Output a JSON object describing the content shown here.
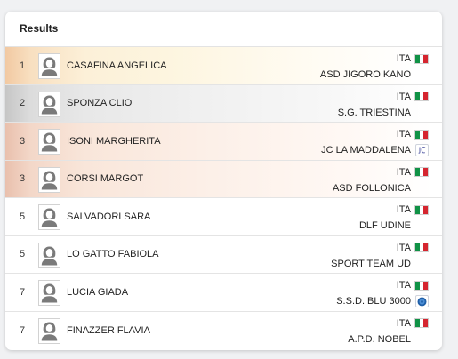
{
  "results": {
    "title": "Results",
    "rows": [
      {
        "rank": "1",
        "name": "CASAFINA ANGELICA",
        "nation": "ITA",
        "club": "ASD JIGORO KANO",
        "medal": "gold"
      },
      {
        "rank": "2",
        "name": "SPONZA CLIO",
        "nation": "ITA",
        "club": "S.G. TRIESTINA",
        "medal": "silver"
      },
      {
        "rank": "3",
        "name": "ISONI MARGHERITA",
        "nation": "ITA",
        "club": "JC LA MADDALENA",
        "medal": "bronze",
        "club_logo": "jc-la-maddalena-logo-icon"
      },
      {
        "rank": "3",
        "name": "CORSI MARGOT",
        "nation": "ITA",
        "club": "ASD FOLLONICA",
        "medal": "bronze"
      },
      {
        "rank": "5",
        "name": "SALVADORI SARA",
        "nation": "ITA",
        "club": "DLF UDINE",
        "medal": "none"
      },
      {
        "rank": "5",
        "name": "LO GATTO FABIOLA",
        "nation": "ITA",
        "club": "SPORT TEAM UD",
        "medal": "none"
      },
      {
        "rank": "7",
        "name": "LUCIA GIADA",
        "nation": "ITA",
        "club": "S.S.D. BLU 3000",
        "medal": "none",
        "club_logo": "blu-3000-logo-icon"
      },
      {
        "rank": "7",
        "name": "FINAZZER FLAVIA",
        "nation": "ITA",
        "club": "A.P.D. NOBEL",
        "medal": "none"
      }
    ]
  },
  "icons": {
    "avatar": "female-avatar-placeholder-icon",
    "flag": "italy-flag-icon"
  },
  "colors": {
    "gold": "#fcecd2",
    "silver": "#e6e6e6",
    "bronze": "#f7e2d6",
    "flag_green": "#109246",
    "flag_white": "#ffffff",
    "flag_red": "#d5252f"
  }
}
